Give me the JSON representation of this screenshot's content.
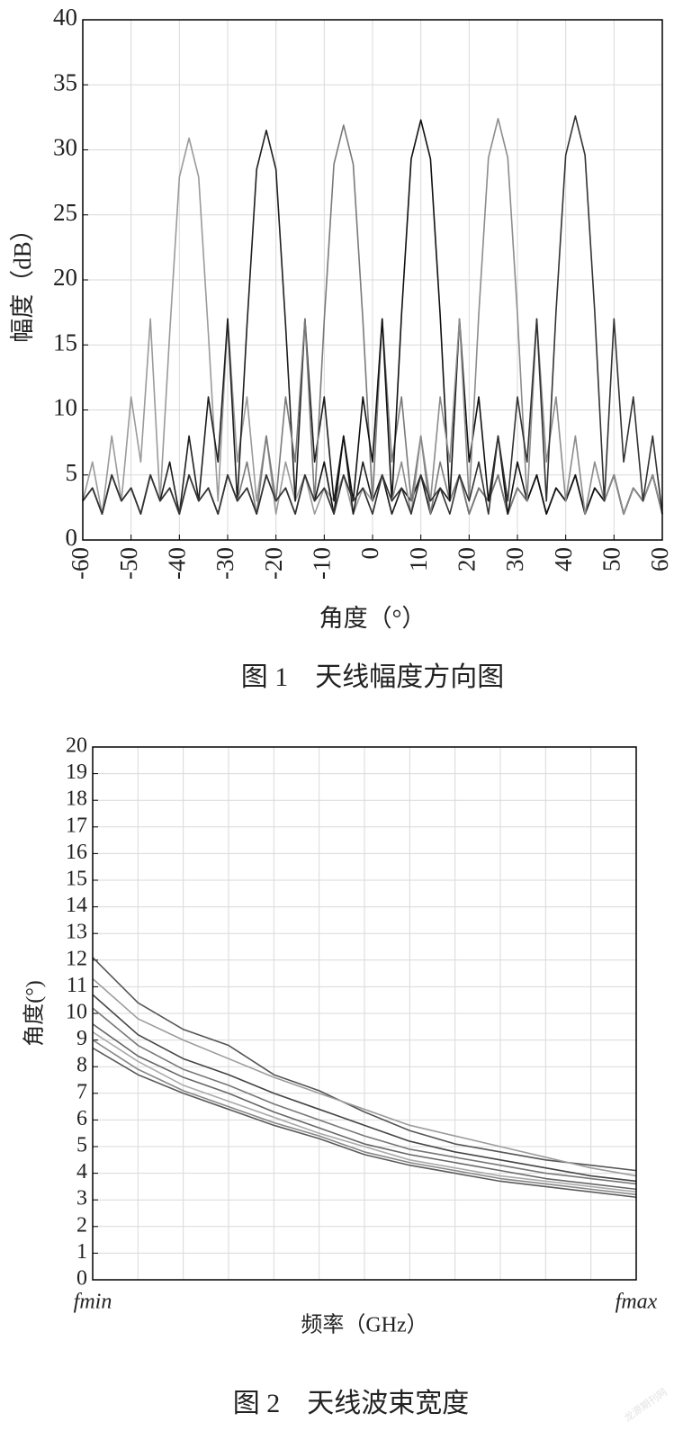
{
  "chart_data": [
    {
      "type": "line",
      "y_label": "幅度（dB）",
      "x_label": "角度（°）",
      "caption": "图 1　天线幅度方向图",
      "x": [
        -60,
        -58,
        -56,
        -54,
        -52,
        -50,
        -48,
        -46,
        -44,
        -42,
        -40,
        -38,
        -36,
        -34,
        -32,
        -30,
        -28,
        -26,
        -24,
        -22,
        -20,
        -18,
        -16,
        -14,
        -12,
        -10,
        -8,
        -6,
        -4,
        -2,
        0,
        2,
        4,
        6,
        8,
        10,
        12,
        14,
        16,
        18,
        20,
        22,
        24,
        26,
        28,
        30,
        32,
        34,
        36,
        38,
        40,
        42,
        44,
        46,
        48,
        50,
        52,
        54,
        56,
        58,
        60
      ],
      "xlim": [
        -60,
        60
      ],
      "xticks": [
        -60,
        -50,
        -40,
        -30,
        -20,
        -10,
        0,
        10,
        20,
        30,
        40,
        50,
        60
      ],
      "ylim": [
        0,
        40
      ],
      "yticks": [
        0,
        5,
        10,
        15,
        20,
        25,
        30,
        35,
        40
      ],
      "grid": true,
      "series": [
        {
          "color": "#9a9a9a",
          "values": [
            3,
            6,
            2,
            8,
            3,
            11,
            6,
            17,
            3,
            15.9,
            27.9,
            30.9,
            27.9,
            15.9,
            3,
            17,
            6,
            11,
            3,
            8,
            2,
            6,
            3,
            5,
            2,
            4,
            3,
            5,
            2,
            4,
            3,
            5,
            2,
            4,
            3,
            5,
            2,
            4,
            3,
            5,
            2,
            4,
            3,
            5,
            2,
            4,
            3,
            5,
            2,
            4,
            3,
            5,
            2,
            4,
            3,
            5,
            2,
            4,
            3,
            5,
            2
          ]
        },
        {
          "color": "#1e1e1e",
          "values": [
            3,
            4,
            2,
            5,
            3,
            4,
            2,
            5,
            3,
            6,
            2,
            8,
            3,
            11,
            6,
            17,
            3,
            16.5,
            28.5,
            31.5,
            28.5,
            16.5,
            3,
            17,
            6,
            11,
            3,
            8,
            2,
            6,
            3,
            5,
            2,
            4,
            3,
            5,
            2,
            4,
            3,
            5,
            2,
            4,
            3,
            5,
            2,
            4,
            3,
            5,
            2,
            4,
            3,
            5,
            2,
            4,
            3,
            5,
            2,
            4,
            3,
            5,
            2
          ]
        },
        {
          "color": "#7a7a7a",
          "values": [
            3,
            4,
            2,
            5,
            3,
            4,
            2,
            5,
            3,
            4,
            2,
            5,
            3,
            4,
            2,
            5,
            3,
            6,
            2,
            8,
            3,
            11,
            6,
            17,
            3,
            16.9,
            28.9,
            31.9,
            28.9,
            16.9,
            3,
            17,
            6,
            11,
            3,
            8,
            2,
            6,
            3,
            5,
            2,
            4,
            3,
            5,
            2,
            4,
            3,
            5,
            2,
            4,
            3,
            5,
            2,
            4,
            3,
            5,
            2,
            4,
            3,
            5,
            2
          ]
        },
        {
          "color": "#111111",
          "values": [
            3,
            4,
            2,
            5,
            3,
            4,
            2,
            5,
            3,
            4,
            2,
            5,
            3,
            4,
            2,
            5,
            3,
            4,
            2,
            5,
            3,
            4,
            2,
            5,
            3,
            6,
            2,
            8,
            3,
            11,
            6,
            17,
            3,
            17.3,
            29.3,
            32.3,
            29.3,
            17.3,
            3,
            17,
            6,
            11,
            3,
            8,
            2,
            6,
            3,
            5,
            2,
            4,
            3,
            5,
            2,
            4,
            3,
            5,
            2,
            4,
            3,
            5,
            2
          ]
        },
        {
          "color": "#8c8c8c",
          "values": [
            3,
            4,
            2,
            5,
            3,
            4,
            2,
            5,
            3,
            4,
            2,
            5,
            3,
            4,
            2,
            5,
            3,
            4,
            2,
            5,
            3,
            4,
            2,
            5,
            3,
            4,
            2,
            5,
            3,
            4,
            2,
            5,
            3,
            6,
            2,
            8,
            3,
            11,
            6,
            17,
            3,
            17.4,
            29.4,
            32.4,
            29.4,
            17.4,
            3,
            17,
            6,
            11,
            3,
            8,
            2,
            6,
            3,
            5,
            2,
            4,
            3,
            5,
            2
          ]
        },
        {
          "color": "#333333",
          "values": [
            3,
            4,
            2,
            5,
            3,
            4,
            2,
            5,
            3,
            4,
            2,
            5,
            3,
            4,
            2,
            5,
            3,
            4,
            2,
            5,
            3,
            4,
            2,
            5,
            3,
            4,
            2,
            5,
            3,
            4,
            2,
            5,
            3,
            4,
            2,
            5,
            3,
            4,
            2,
            5,
            3,
            6,
            2,
            8,
            3,
            11,
            6,
            17,
            3,
            17.6,
            29.6,
            32.6,
            29.6,
            17.6,
            3,
            17,
            6,
            11,
            3,
            8,
            2
          ]
        }
      ]
    },
    {
      "type": "line",
      "y_label": "角度(°)",
      "x_label": "频率（GHz）",
      "caption": "图 2　天线波束宽度",
      "categories": [
        "fmin",
        null,
        null,
        null,
        null,
        null,
        null,
        null,
        null,
        null,
        null,
        null,
        "fmax"
      ],
      "ylim": [
        0,
        20
      ],
      "yticks": [
        0,
        1,
        2,
        3,
        4,
        5,
        6,
        7,
        8,
        9,
        10,
        11,
        12,
        13,
        14,
        15,
        16,
        17,
        18,
        19,
        20
      ],
      "grid": true,
      "series": [
        {
          "color": "#555555",
          "values": [
            12.1,
            10.4,
            9.4,
            8.8,
            7.7,
            7.1,
            6.3,
            5.6,
            5.1,
            4.8,
            4.5,
            4.3,
            4.1
          ]
        },
        {
          "color": "#9c9c9c",
          "values": [
            11.3,
            9.8,
            9.0,
            8.3,
            7.6,
            7.0,
            6.4,
            5.8,
            5.4,
            5.0,
            4.6,
            4.2,
            3.9
          ]
        },
        {
          "color": "#444444",
          "values": [
            10.7,
            9.2,
            8.3,
            7.7,
            7.0,
            6.4,
            5.8,
            5.2,
            4.8,
            4.5,
            4.2,
            3.9,
            3.7
          ]
        },
        {
          "color": "#777777",
          "values": [
            10.2,
            8.8,
            7.9,
            7.3,
            6.6,
            6.0,
            5.4,
            4.9,
            4.6,
            4.3,
            4.0,
            3.8,
            3.6
          ]
        },
        {
          "color": "#666666",
          "values": [
            9.6,
            8.4,
            7.6,
            7.0,
            6.3,
            5.7,
            5.1,
            4.7,
            4.4,
            4.1,
            3.8,
            3.6,
            3.4
          ]
        },
        {
          "color": "#aaaaaa",
          "values": [
            9.3,
            8.2,
            7.3,
            6.7,
            6.1,
            5.5,
            5.0,
            4.5,
            4.2,
            3.9,
            3.7,
            3.5,
            3.3
          ]
        },
        {
          "color": "#888888",
          "values": [
            9.0,
            7.9,
            7.1,
            6.5,
            5.9,
            5.4,
            4.8,
            4.4,
            4.1,
            3.8,
            3.6,
            3.4,
            3.2
          ]
        },
        {
          "color": "#5a5a5a",
          "values": [
            8.7,
            7.7,
            7.0,
            6.4,
            5.8,
            5.3,
            4.7,
            4.3,
            4.0,
            3.7,
            3.5,
            3.3,
            3.1
          ]
        }
      ]
    }
  ],
  "watermark": "龙源期刊网"
}
